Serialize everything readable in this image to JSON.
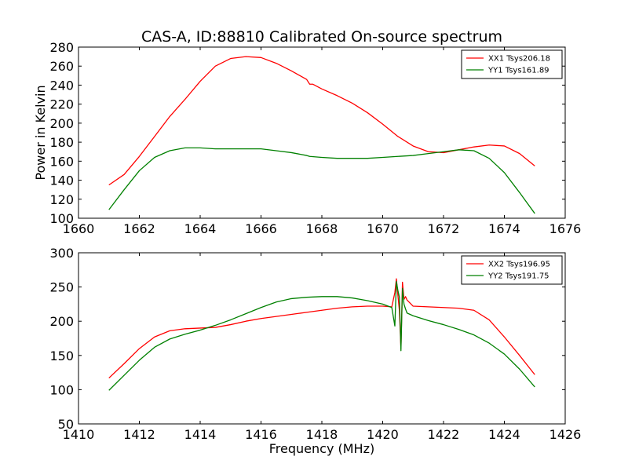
{
  "title": "CAS-A, ID:88810 Calibrated On-source spectrum",
  "colors": {
    "red": "#ff0000",
    "green": "#008000",
    "frame": "#000000"
  },
  "chart_data": [
    {
      "type": "line",
      "ylabel": "Power in Kelvin",
      "xlabel": "",
      "xlim": [
        1660,
        1676
      ],
      "ylim": [
        100,
        280
      ],
      "xticks": [
        1660,
        1662,
        1664,
        1666,
        1668,
        1670,
        1672,
        1674,
        1676
      ],
      "yticks": [
        100,
        120,
        140,
        160,
        180,
        200,
        220,
        240,
        260,
        280
      ],
      "grid": false,
      "legend": "top-right",
      "series": [
        {
          "name": "XX1 Tsys206.18",
          "color": "#ff0000",
          "x": [
            1661.0,
            1661.5,
            1662.0,
            1662.5,
            1663.0,
            1663.5,
            1664.0,
            1664.5,
            1665.0,
            1665.5,
            1666.0,
            1666.5,
            1667.0,
            1667.5,
            1667.6,
            1667.7,
            1668.0,
            1668.5,
            1669.0,
            1669.5,
            1670.0,
            1670.5,
            1671.0,
            1671.5,
            1672.0,
            1672.5,
            1673.0,
            1673.5,
            1674.0,
            1674.5,
            1675.0
          ],
          "y": [
            135,
            146,
            165,
            186,
            207,
            225,
            244,
            260,
            268,
            270,
            269,
            263,
            255,
            246,
            241,
            241,
            236,
            229,
            221,
            211,
            199,
            186,
            176,
            170,
            169,
            172,
            175,
            177,
            176,
            168,
            155
          ]
        },
        {
          "name": "YY1 Tsys161.89",
          "color": "#008000",
          "x": [
            1661.0,
            1661.5,
            1662.0,
            1662.5,
            1663.0,
            1663.5,
            1664.0,
            1664.5,
            1665.0,
            1665.5,
            1666.0,
            1666.5,
            1667.0,
            1667.5,
            1667.6,
            1668.0,
            1668.5,
            1669.0,
            1669.5,
            1670.0,
            1670.5,
            1671.0,
            1671.5,
            1672.0,
            1672.5,
            1673.0,
            1673.5,
            1674.0,
            1674.5,
            1675.0
          ],
          "y": [
            109,
            130,
            150,
            164,
            171,
            174,
            174,
            173,
            173,
            173,
            173,
            171,
            169,
            166,
            165,
            164,
            163,
            163,
            163,
            164,
            165,
            166,
            168,
            170,
            172,
            171,
            163,
            148,
            127,
            105
          ]
        }
      ]
    },
    {
      "type": "line",
      "ylabel": "",
      "xlabel": "Frequency (MHz)",
      "xlim": [
        1410,
        1426
      ],
      "ylim": [
        50,
        300
      ],
      "xticks": [
        1410,
        1412,
        1414,
        1416,
        1418,
        1420,
        1422,
        1424,
        1426
      ],
      "yticks": [
        50,
        100,
        150,
        200,
        250,
        300
      ],
      "grid": false,
      "legend": "top-right",
      "series": [
        {
          "name": "XX2 Tsys196.95",
          "color": "#ff0000",
          "x": [
            1411.0,
            1411.5,
            1412.0,
            1412.5,
            1413.0,
            1413.5,
            1414.0,
            1414.5,
            1415.0,
            1415.5,
            1416.0,
            1416.5,
            1417.0,
            1417.5,
            1418.0,
            1418.5,
            1419.0,
            1419.5,
            1420.0,
            1420.3,
            1420.4,
            1420.45,
            1420.5,
            1420.55,
            1420.6,
            1420.65,
            1420.7,
            1420.75,
            1420.8,
            1421.0,
            1421.5,
            1422.0,
            1422.5,
            1423.0,
            1423.5,
            1424.0,
            1424.5,
            1425.0
          ],
          "y": [
            117,
            138,
            160,
            177,
            186,
            189,
            190,
            191,
            195,
            200,
            204,
            207,
            210,
            213,
            216,
            219,
            221,
            222,
            222,
            221,
            242,
            262,
            238,
            215,
            160,
            257,
            232,
            236,
            231,
            222,
            221,
            220,
            219,
            216,
            202,
            177,
            150,
            122
          ]
        },
        {
          "name": "YY2 Tsys191.75",
          "color": "#008000",
          "x": [
            1411.0,
            1411.5,
            1412.0,
            1412.5,
            1413.0,
            1413.5,
            1414.0,
            1414.5,
            1415.0,
            1415.5,
            1416.0,
            1416.5,
            1417.0,
            1417.5,
            1418.0,
            1418.5,
            1419.0,
            1419.5,
            1420.0,
            1420.3,
            1420.4,
            1420.45,
            1420.5,
            1420.55,
            1420.6,
            1420.65,
            1420.7,
            1420.75,
            1420.8,
            1421.0,
            1421.5,
            1422.0,
            1422.5,
            1423.0,
            1423.5,
            1424.0,
            1424.5,
            1425.0
          ],
          "y": [
            99,
            121,
            143,
            162,
            174,
            181,
            187,
            194,
            202,
            211,
            220,
            228,
            233,
            235,
            236,
            236,
            234,
            230,
            225,
            220,
            193,
            258,
            245,
            235,
            157,
            248,
            225,
            218,
            212,
            208,
            201,
            195,
            188,
            180,
            168,
            152,
            130,
            104
          ]
        }
      ]
    }
  ]
}
